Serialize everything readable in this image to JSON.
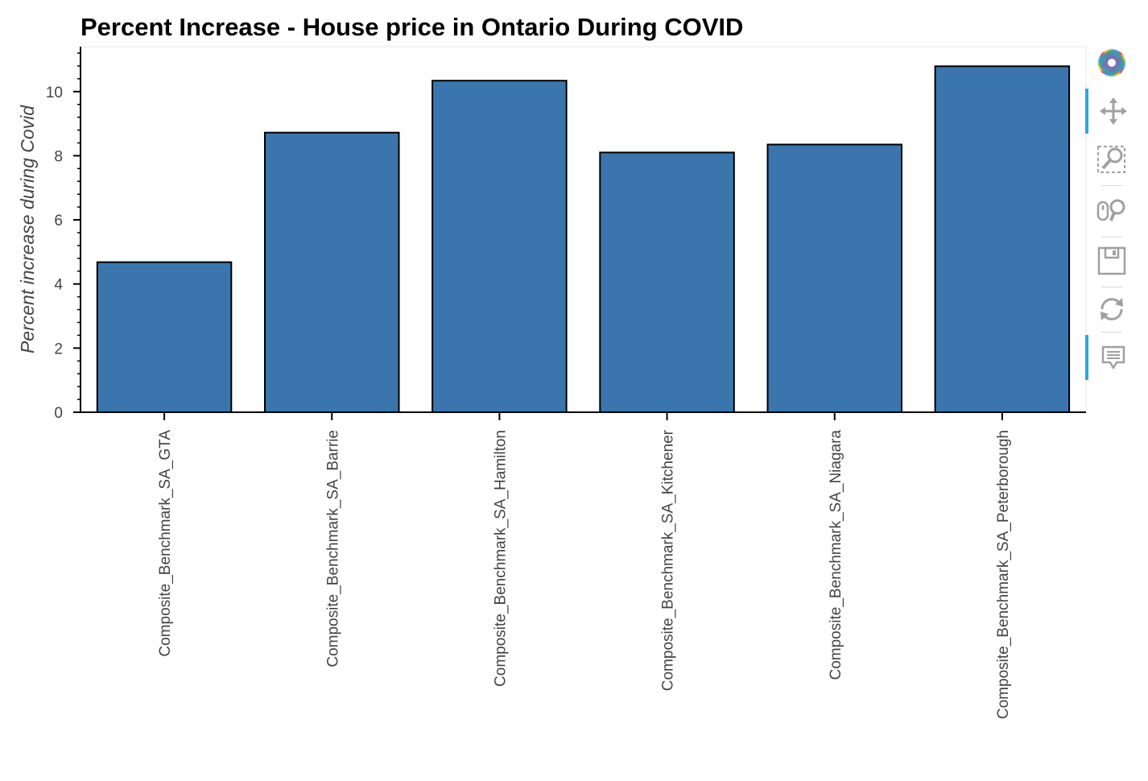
{
  "chart_data": {
    "type": "bar",
    "title": "Percent Increase - House price in Ontario During COVID",
    "xlabel": "",
    "ylabel": "Percent increase during Covid",
    "categories": [
      "Composite_Benchmark_SA_GTA",
      "Composite_Benchmark_SA_Barrie",
      "Composite_Benchmark_SA_Hamilton",
      "Composite_Benchmark_SA_Kitchener",
      "Composite_Benchmark_SA_Niagara",
      "Composite_Benchmark_SA_Peterborough"
    ],
    "values": [
      4.68,
      8.72,
      10.34,
      8.1,
      8.35,
      10.79
    ],
    "ylim": [
      0,
      11.4
    ],
    "yticks": [
      "0",
      "2",
      "4",
      "6",
      "8",
      "10"
    ],
    "grid": false,
    "bar_color": "#3a76ad",
    "bar_edge_color": "#000000"
  },
  "toolbar": {
    "tools": [
      {
        "name": "bokeh-logo-icon",
        "active": false
      },
      {
        "name": "pan-icon",
        "active": true
      },
      {
        "name": "box-zoom-icon",
        "active": false
      },
      {
        "name": "wheel-zoom-icon",
        "active": false
      },
      {
        "name": "save-icon",
        "active": false
      },
      {
        "name": "reset-icon",
        "active": false
      },
      {
        "name": "hover-icon",
        "active": true
      }
    ],
    "accent_color": "#26aae1"
  }
}
